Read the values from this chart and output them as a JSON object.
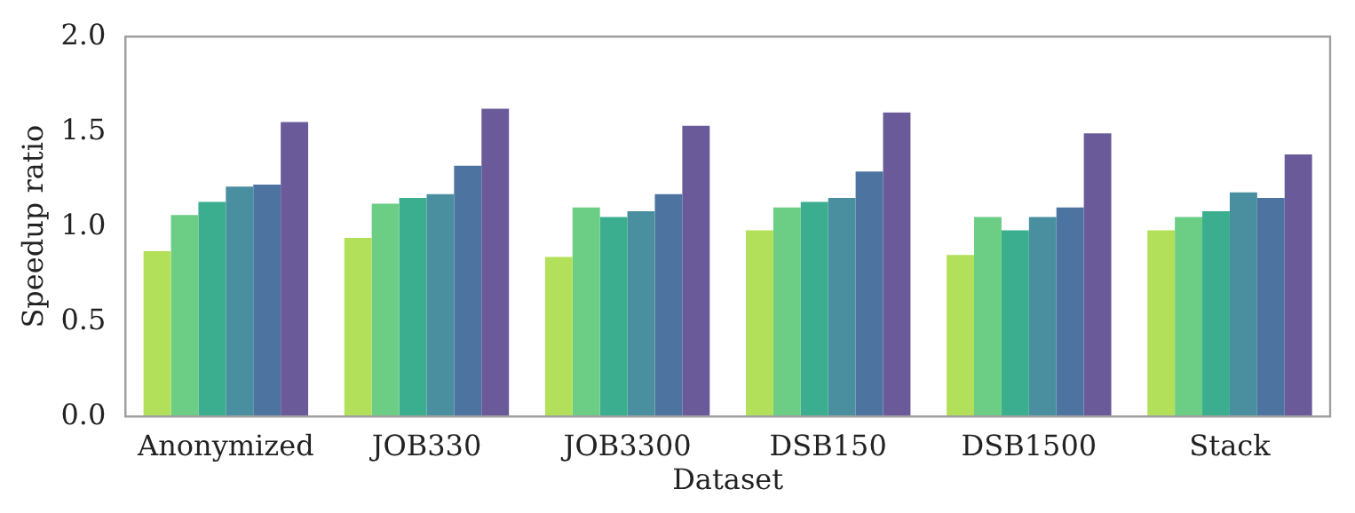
{
  "chart_data": {
    "type": "bar",
    "xlabel": "Dataset",
    "ylabel": "Speedup ratio",
    "categories": [
      "Anonymized",
      "JOB330",
      "JOB3300",
      "DSB150",
      "DSB1500",
      "Stack"
    ],
    "series": [
      {
        "color": "#b3e05a",
        "values": [
          0.87,
          0.94,
          0.84,
          0.98,
          0.85,
          0.98
        ]
      },
      {
        "color": "#6ccd85",
        "values": [
          1.06,
          1.12,
          1.1,
          1.1,
          1.05,
          1.05
        ]
      },
      {
        "color": "#3aae8f",
        "values": [
          1.13,
          1.15,
          1.05,
          1.13,
          0.98,
          1.08
        ]
      },
      {
        "color": "#4a8fa0",
        "values": [
          1.21,
          1.17,
          1.08,
          1.15,
          1.05,
          1.18
        ]
      },
      {
        "color": "#4d74a0",
        "values": [
          1.22,
          1.32,
          1.17,
          1.29,
          1.1,
          1.15
        ]
      },
      {
        "color": "#6a5a9a",
        "values": [
          1.55,
          1.62,
          1.53,
          1.6,
          1.49,
          1.38
        ]
      }
    ],
    "ylim": [
      0,
      2
    ],
    "yticks": [
      {
        "value": 0,
        "label": "0.0"
      },
      0.5,
      {
        "value": 1,
        "label": "1.0"
      },
      1.5,
      {
        "value": 2,
        "label": "2.0"
      }
    ],
    "grid": false,
    "legend": false
  }
}
